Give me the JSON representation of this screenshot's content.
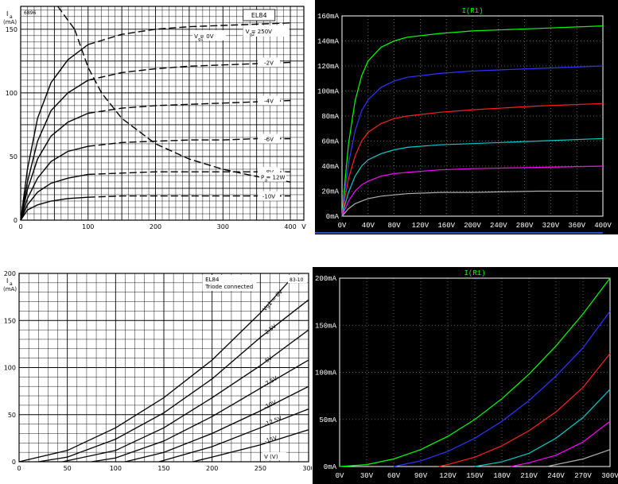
{
  "chart_data": [
    {
      "id": "tl",
      "type": "line",
      "style": "datasheet",
      "tube": "EL84",
      "code": "6896",
      "ylabel": [
        "I",
        "(mA)"
      ],
      "ylabel_sub": "a",
      "xticks": [
        "0",
        "100",
        "200",
        "300",
        "400",
        "V"
      ],
      "yticks": [
        "0",
        "50",
        "100",
        "150"
      ],
      "xlim": [
        0,
        420
      ],
      "ylim": [
        0,
        168
      ],
      "grid": true,
      "screen_label": "V  = 250V",
      "screen_sub": "g2",
      "g1_label": "V   = 0V",
      "g1_sub": "g1",
      "dissipation_label": "P  = 12W",
      "dissipation_sub": "a",
      "dissipation_curve": [
        [
          80,
          150
        ],
        [
          100,
          120
        ],
        [
          120,
          100
        ],
        [
          150,
          80
        ],
        [
          200,
          60
        ],
        [
          250,
          48
        ],
        [
          300,
          40
        ],
        [
          350,
          34.3
        ],
        [
          400,
          30
        ]
      ],
      "series": [
        {
          "name": "0V",
          "label": "",
          "x": [
            0,
            10,
            25,
            45,
            70,
            100,
            150,
            200,
            250,
            300,
            350,
            400
          ],
          "y": [
            0,
            40,
            80,
            108,
            126,
            138,
            146,
            150,
            152,
            153,
            154,
            155
          ]
        },
        {
          "name": "-2V",
          "label": "-2V",
          "x": [
            0,
            10,
            25,
            45,
            70,
            100,
            150,
            200,
            250,
            300,
            350,
            400
          ],
          "y": [
            0,
            30,
            62,
            86,
            100,
            110,
            116,
            119,
            121,
            122,
            123,
            124
          ]
        },
        {
          "name": "-4V",
          "label": "-4V",
          "x": [
            0,
            10,
            25,
            45,
            70,
            100,
            150,
            200,
            250,
            300,
            350,
            400
          ],
          "y": [
            0,
            24,
            48,
            66,
            77,
            84,
            88,
            90,
            91,
            92,
            93,
            94
          ]
        },
        {
          "name": "-6V",
          "label": "-6V",
          "x": [
            0,
            10,
            25,
            45,
            70,
            100,
            150,
            200,
            250,
            300,
            350,
            400
          ],
          "y": [
            0,
            17,
            33,
            46,
            54,
            58,
            61,
            62,
            63,
            63,
            64,
            64
          ]
        },
        {
          "name": "-8V",
          "label": "-8V",
          "x": [
            0,
            10,
            25,
            45,
            70,
            100,
            150,
            200,
            250,
            300,
            350,
            400
          ],
          "y": [
            0,
            12,
            22,
            29,
            33,
            36,
            37,
            38,
            38,
            38,
            38,
            38
          ]
        },
        {
          "name": "-10V",
          "label": "-10V",
          "x": [
            0,
            10,
            25,
            45,
            70,
            100,
            150,
            200,
            250,
            300,
            350,
            400
          ],
          "y": [
            0,
            8,
            12,
            15,
            17,
            18,
            19,
            19,
            19,
            19,
            19,
            19
          ]
        }
      ]
    },
    {
      "id": "tr",
      "type": "line",
      "style": "spice",
      "title": "I(R1)",
      "xticks": [
        "0V",
        "40V",
        "80V",
        "120V",
        "160V",
        "200V",
        "240V",
        "280V",
        "320V",
        "360V",
        "400V"
      ],
      "yticks": [
        "0mA",
        "20mA",
        "40mA",
        "60mA",
        "80mA",
        "100mA",
        "120mA",
        "140mA",
        "160mA"
      ],
      "xlim": [
        0,
        400
      ],
      "ylim": [
        0,
        160
      ],
      "grid": true,
      "series": [
        {
          "color": "#00ff00",
          "x": [
            0,
            5,
            10,
            20,
            30,
            40,
            60,
            80,
            100,
            150,
            200,
            300,
            400
          ],
          "y": [
            0,
            30,
            58,
            92,
            112,
            124,
            135,
            140,
            143,
            146,
            148,
            150,
            152
          ]
        },
        {
          "color": "#3333ff",
          "x": [
            0,
            5,
            10,
            20,
            30,
            40,
            60,
            80,
            100,
            150,
            200,
            300,
            400
          ],
          "y": [
            0,
            22,
            42,
            68,
            84,
            93,
            103,
            108,
            111,
            114,
            116,
            118,
            120
          ]
        },
        {
          "color": "#ff2020",
          "x": [
            0,
            5,
            10,
            20,
            30,
            40,
            60,
            80,
            100,
            150,
            200,
            300,
            400
          ],
          "y": [
            0,
            16,
            30,
            48,
            60,
            67,
            74,
            78,
            80,
            83,
            85,
            88,
            90
          ]
        },
        {
          "color": "#00cccc",
          "x": [
            0,
            5,
            10,
            20,
            30,
            40,
            60,
            80,
            100,
            150,
            200,
            300,
            400
          ],
          "y": [
            0,
            10,
            19,
            32,
            40,
            45,
            50,
            53,
            55,
            57,
            58,
            60,
            62
          ]
        },
        {
          "color": "#ff00ff",
          "x": [
            0,
            5,
            10,
            20,
            30,
            40,
            60,
            80,
            100,
            150,
            200,
            300,
            400
          ],
          "y": [
            0,
            6,
            12,
            20,
            25,
            28,
            32,
            34,
            35,
            37,
            38,
            39,
            40
          ]
        },
        {
          "color": "#b0b0b0",
          "x": [
            0,
            5,
            10,
            20,
            30,
            40,
            60,
            80,
            100,
            150,
            200,
            300,
            400
          ],
          "y": [
            0,
            3,
            6,
            10,
            12,
            14,
            16,
            17,
            18,
            19,
            19,
            20,
            20
          ]
        }
      ]
    },
    {
      "id": "bl",
      "type": "line",
      "style": "datasheet",
      "tube": "EL84",
      "subtitle": "Triode connected",
      "code": "83-10",
      "ylabel": [
        "I",
        "(mA)"
      ],
      "ylabel_sub": "a",
      "xlabel": "V (V)",
      "xticks": [
        "0",
        "50",
        "100",
        "150",
        "200",
        "250",
        "300"
      ],
      "yticks": [
        "0",
        "50",
        "100",
        "150",
        "200"
      ],
      "xlim": [
        0,
        300
      ],
      "ylim": [
        0,
        200
      ],
      "grid": true,
      "series": [
        {
          "name": "0V",
          "label": "Vg1 = 0V",
          "x": [
            0,
            50,
            100,
            150,
            200,
            250,
            280
          ],
          "y": [
            0,
            12,
            36,
            68,
            108,
            158,
            192
          ]
        },
        {
          "name": "-2.5V",
          "label": "-2.5V",
          "x": [
            20,
            50,
            100,
            150,
            200,
            250,
            300
          ],
          "y": [
            0,
            5,
            24,
            52,
            88,
            132,
            172
          ]
        },
        {
          "name": "-5V",
          "label": "-5V",
          "x": [
            45,
            100,
            150,
            200,
            250,
            300
          ],
          "y": [
            0,
            12,
            36,
            68,
            102,
            140
          ]
        },
        {
          "name": "-7.5V",
          "label": "-7.5V",
          "x": [
            75,
            100,
            150,
            200,
            250,
            300
          ],
          "y": [
            0,
            4,
            22,
            48,
            78,
            108
          ]
        },
        {
          "name": "-10V",
          "label": "-10V",
          "x": [
            110,
            150,
            200,
            250,
            300
          ],
          "y": [
            0,
            10,
            30,
            54,
            80
          ]
        },
        {
          "name": "-12.5V",
          "label": "-12.5V",
          "x": [
            145,
            200,
            250,
            300
          ],
          "y": [
            0,
            16,
            36,
            56
          ]
        },
        {
          "name": "-15V",
          "label": "-15V",
          "x": [
            180,
            200,
            250,
            300
          ],
          "y": [
            0,
            5,
            18,
            34
          ]
        }
      ]
    },
    {
      "id": "br",
      "type": "line",
      "style": "spice",
      "title": "I(R1)",
      "xticks": [
        "0V",
        "30V",
        "60V",
        "90V",
        "120V",
        "150V",
        "180V",
        "210V",
        "240V",
        "270V",
        "300V"
      ],
      "yticks": [
        "0mA",
        "50mA",
        "100mA",
        "150mA",
        "200mA"
      ],
      "xlim": [
        0,
        300
      ],
      "ylim": [
        0,
        200
      ],
      "grid": true,
      "series": [
        {
          "color": "#00ff00",
          "x": [
            0,
            30,
            60,
            90,
            120,
            150,
            180,
            210,
            240,
            270,
            300
          ],
          "y": [
            0,
            2,
            8,
            18,
            32,
            50,
            72,
            98,
            128,
            162,
            200
          ]
        },
        {
          "color": "#3333ff",
          "x": [
            60,
            90,
            120,
            150,
            180,
            210,
            240,
            270,
            300
          ],
          "y": [
            0,
            6,
            16,
            30,
            48,
            70,
            96,
            126,
            165
          ]
        },
        {
          "color": "#ff2020",
          "x": [
            110,
            120,
            150,
            180,
            210,
            240,
            270,
            300
          ],
          "y": [
            0,
            2,
            10,
            22,
            38,
            58,
            84,
            120
          ]
        },
        {
          "color": "#00cccc",
          "x": [
            150,
            180,
            210,
            240,
            270,
            300
          ],
          "y": [
            0,
            5,
            14,
            30,
            52,
            82
          ]
        },
        {
          "color": "#ff00ff",
          "x": [
            190,
            210,
            240,
            270,
            300
          ],
          "y": [
            0,
            4,
            12,
            26,
            48
          ]
        },
        {
          "color": "#b0b0b0",
          "x": [
            230,
            240,
            270,
            300
          ],
          "y": [
            0,
            2,
            8,
            18
          ]
        }
      ]
    }
  ]
}
